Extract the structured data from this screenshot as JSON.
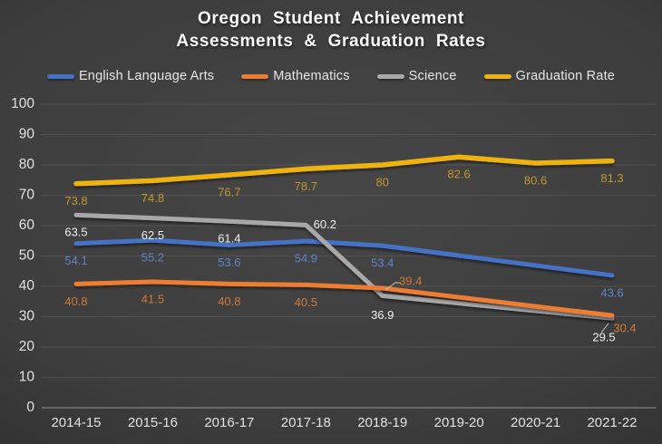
{
  "title": {
    "line1": "Oregon Student Achievement",
    "line2": "Assessments & Graduation Rates"
  },
  "chart_data": {
    "type": "line",
    "title": "Oregon Student Achievement Assessments & Graduation Rates",
    "categories": [
      "2014-15",
      "2015-16",
      "2016-17",
      "2017-18",
      "2018-19",
      "2019-20",
      "2020-21",
      "2021-22"
    ],
    "yticks": [
      0,
      10,
      20,
      30,
      40,
      50,
      60,
      70,
      80,
      90,
      100
    ],
    "ylim": [
      0,
      100
    ],
    "grid": true,
    "legend_position": "top",
    "background_color": "#3d3d3d",
    "series": [
      {
        "name": "English Language Arts",
        "color": "#4472C4",
        "label_color": "#5E84C8",
        "values": [
          54.1,
          55.2,
          53.6,
          54.9,
          53.4,
          null,
          null,
          43.6
        ]
      },
      {
        "name": "Mathematics",
        "color": "#ED7D31",
        "label_color": "#D07A36",
        "values": [
          40.8,
          41.5,
          40.8,
          40.5,
          39.4,
          null,
          null,
          30.4
        ]
      },
      {
        "name": "Science",
        "color": "#A8A8A8",
        "label_color": "#F0F0F0",
        "values": [
          63.5,
          62.5,
          61.4,
          60.2,
          36.9,
          null,
          null,
          29.5
        ]
      },
      {
        "name": "Graduation Rate",
        "color": "#EFB310",
        "label_color": "#C2992C",
        "values": [
          73.8,
          74.8,
          76.7,
          78.7,
          80,
          82.6,
          80.6,
          81.3
        ]
      }
    ]
  }
}
